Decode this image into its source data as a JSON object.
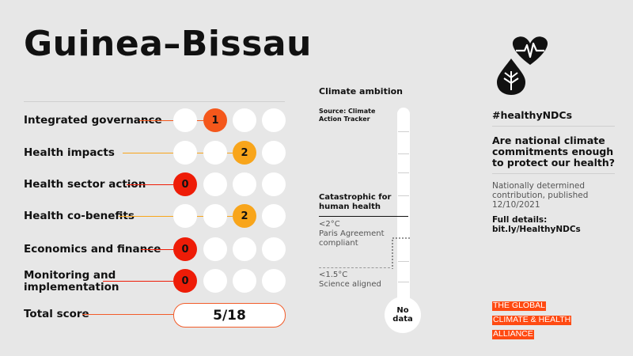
{
  "header": {
    "country": "Guinea–Bissau"
  },
  "rows": [
    {
      "label": "Integrated governance",
      "score": "1"
    },
    {
      "label": "Health impacts",
      "score": "2"
    },
    {
      "label": "Health sector action",
      "score": "0"
    },
    {
      "label": "Health co-benefits",
      "score": "2"
    },
    {
      "label": "Economics and finance",
      "score": "0"
    },
    {
      "label": "Monitoring and implementation",
      "score": "0"
    }
  ],
  "total": {
    "label": "Total score",
    "value": "5/18"
  },
  "ambition": {
    "title": "Climate ambition",
    "source": "Source: Climate Action Tracker",
    "catastrophic": "Catastrophic for human health",
    "paris_value": "<2°C",
    "paris_text": "Paris Agreement compliant",
    "science_value": "<1.5°C",
    "science_text": "Science aligned",
    "rating": "No data"
  },
  "sidebar": {
    "hashtag": "#healthyNDCs",
    "question": "Are national climate commitments enough to protect our health?",
    "ndc_info": "Nationally determined contribution, published 12/10/2021",
    "full_details": "Full details: bit.ly/HealthyNDCs"
  },
  "logo": {
    "line1": "THE GLOBAL",
    "line2": "CLIMATE & HEALTH",
    "line3": "ALLIANCE"
  },
  "colors": {
    "score_0": "#ee1c07",
    "score_1": "#f4571b",
    "score_2": "#f8a51b",
    "brand": "#ff4a12",
    "background": "#e7e7e7"
  }
}
